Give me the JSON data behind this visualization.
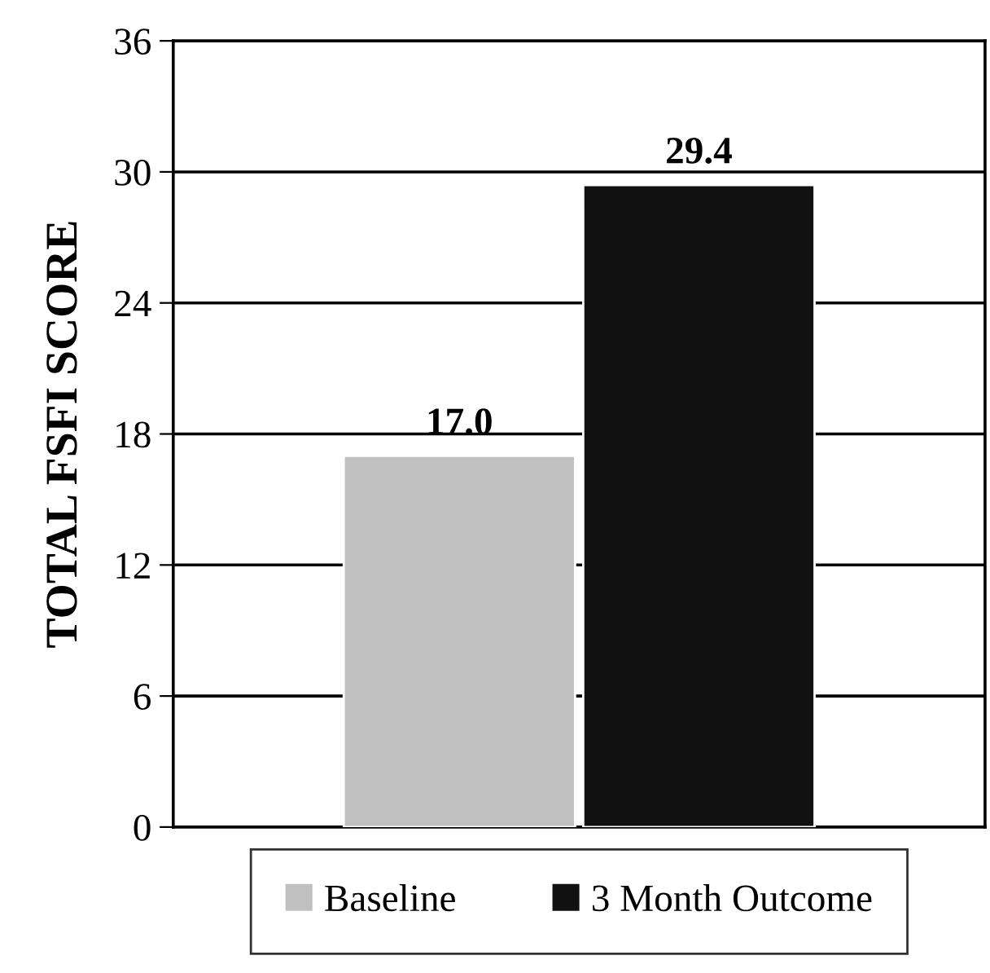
{
  "chart_data": {
    "type": "bar",
    "ylabel": "TOTAL FSFI SCORE",
    "categories": [
      null
    ],
    "series": [
      {
        "name": "Baseline",
        "color": "#c0c0c0",
        "values": [
          17.0
        ],
        "value_labels": [
          "17.0"
        ]
      },
      {
        "name": "3 Month Outcome",
        "color": "#111111",
        "values": [
          29.4
        ],
        "value_labels": [
          "29.4"
        ]
      }
    ],
    "ylim": [
      0,
      36
    ],
    "yticks": [
      0,
      6,
      12,
      18,
      24,
      30,
      36
    ],
    "grid": "y",
    "legend": "bottom"
  }
}
